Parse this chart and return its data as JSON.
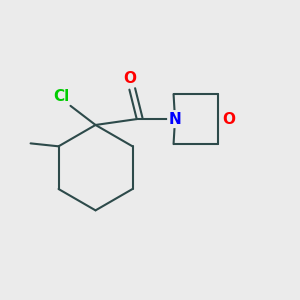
{
  "bg_color": "#ebebeb",
  "bond_color": "#2d4a4a",
  "cl_color": "#00cc00",
  "o_color": "#ff0000",
  "n_color": "#0000ff",
  "line_width": 1.5,
  "font_size": 11,
  "fig_size": [
    3.0,
    3.0
  ],
  "dpi": 100,
  "xlim": [
    0.0,
    1.0
  ],
  "ylim": [
    0.0,
    1.0
  ]
}
